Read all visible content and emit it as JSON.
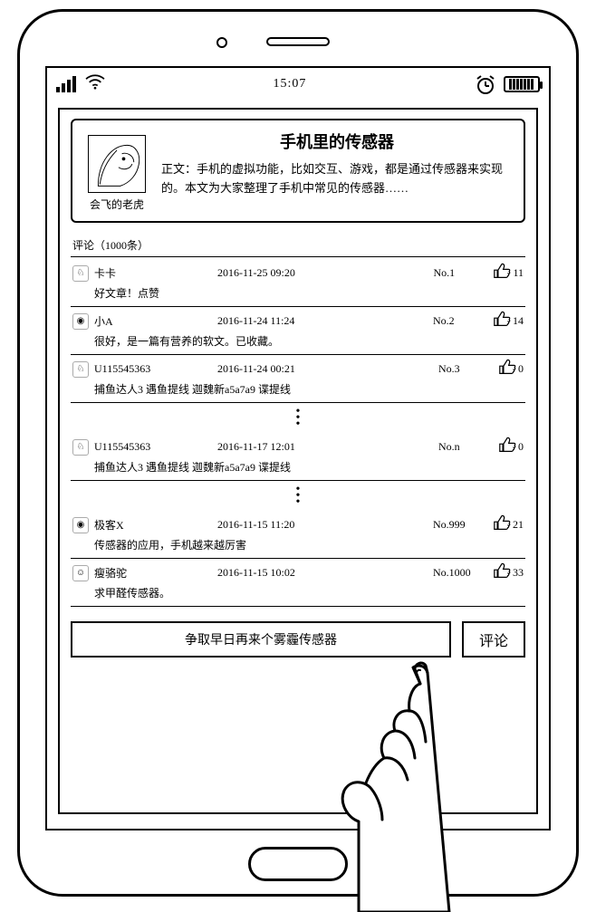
{
  "status": {
    "time": "15:07"
  },
  "article": {
    "title": "手机里的传感器",
    "author": "会飞的老虎",
    "body": "正文：手机的虚拟功能，比如交互、游戏，都是通过传感器来实现的。本文为大家整理了手机中常见的传感器……"
  },
  "comments_header": "评论（1000条）",
  "comments": [
    {
      "name": "卡卡",
      "time": "2016-11-25 09:20",
      "no": "No.1",
      "likes": "11",
      "text": "好文章！点赞"
    },
    {
      "name": "小A",
      "time": "2016-11-24 11:24",
      "no": "No.2",
      "likes": "14",
      "text": "很好，是一篇有营养的软文。已收藏。"
    },
    {
      "name": "U115545363",
      "time": "2016-11-24 00:21",
      "no": "No.3",
      "likes": "0",
      "text": "捕鱼达人3 遇鱼提线 迦魏新a5a7a9 谍提线"
    },
    {
      "name": "U115545363",
      "time": "2016-11-17 12:01",
      "no": "No.n",
      "likes": "0",
      "text": "捕鱼达人3 遇鱼提线 迦魏新a5a7a9 谍提线"
    },
    {
      "name": "极客X",
      "time": "2016-11-15 11:20",
      "no": "No.999",
      "likes": "21",
      "text": "传感器的应用，手机越来越厉害"
    },
    {
      "name": "瘦骆驼",
      "time": "2016-11-15 10:02",
      "no": "No.1000",
      "likes": "33",
      "text": "求甲醛传感器。"
    }
  ],
  "compose": {
    "input_value": "争取早日再来个雾霾传感器",
    "button_label": "评论"
  }
}
